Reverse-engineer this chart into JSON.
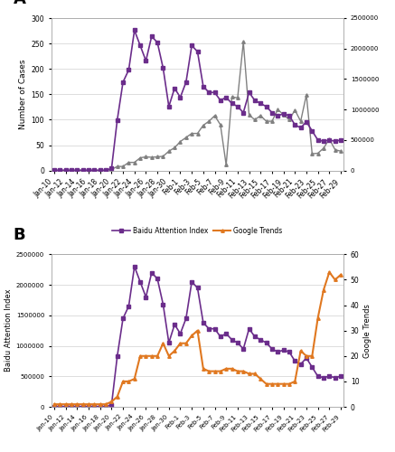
{
  "bai_values": [
    5000,
    5000,
    5000,
    5000,
    5000,
    5000,
    5000,
    5000,
    5000,
    5000,
    33000,
    830000,
    1450000,
    1650000,
    2300000,
    2050000,
    1800000,
    2200000,
    2100000,
    1680000,
    1050000,
    1350000,
    1200000,
    1450000,
    2050000,
    1950000,
    1380000,
    1280000,
    1280000,
    1150000,
    1200000,
    1100000,
    1050000,
    950000,
    1280000,
    1150000,
    1100000,
    1050000,
    950000,
    900000,
    930000,
    900000,
    750000,
    700000,
    800000,
    650000,
    500000,
    480000,
    500000,
    480000,
    500000
  ],
  "deaths_values": [
    0,
    0,
    0,
    0,
    0,
    0,
    0,
    0,
    0,
    0,
    2,
    8,
    8,
    16,
    16,
    25,
    27,
    26,
    27,
    28,
    38,
    45,
    57,
    65,
    73,
    73,
    89,
    97,
    108,
    90,
    11,
    145,
    143,
    253,
    109,
    100,
    108,
    97,
    97,
    120,
    110,
    100,
    119,
    97,
    149,
    33,
    34,
    44,
    62,
    41,
    38
  ],
  "gt_values": [
    1,
    1,
    1,
    1,
    1,
    1,
    1,
    1,
    1,
    1,
    2,
    4,
    10,
    10,
    11,
    20,
    20,
    20,
    20,
    25,
    20,
    22,
    25,
    25,
    28,
    30,
    15,
    14,
    14,
    14,
    15,
    15,
    14,
    14,
    13,
    13,
    11,
    9,
    9,
    9,
    9,
    9,
    10,
    22,
    20,
    20,
    35,
    46,
    53,
    50,
    52
  ],
  "tick_labels": [
    "Jan-10",
    "Jan-12",
    "Jan-14",
    "Jan-16",
    "Jan-18",
    "Jan-20",
    "Jan-22",
    "Jan-24",
    "Jan-26",
    "Jan-28",
    "Jan-30",
    "Feb-1",
    "Feb-3",
    "Feb-5",
    "Feb-7",
    "Feb-9",
    "Feb-11",
    "Feb-13",
    "Feb-15",
    "Feb-17",
    "Feb-19",
    "Feb-21",
    "Feb-23",
    "Feb-25",
    "Feb-27",
    "Feb-29"
  ],
  "bai_color": "#6b2d8b",
  "deaths_color": "#808080",
  "gt_color": "#e07820",
  "grid_color": "#d0d0d0",
  "background_color": "#ffffff"
}
